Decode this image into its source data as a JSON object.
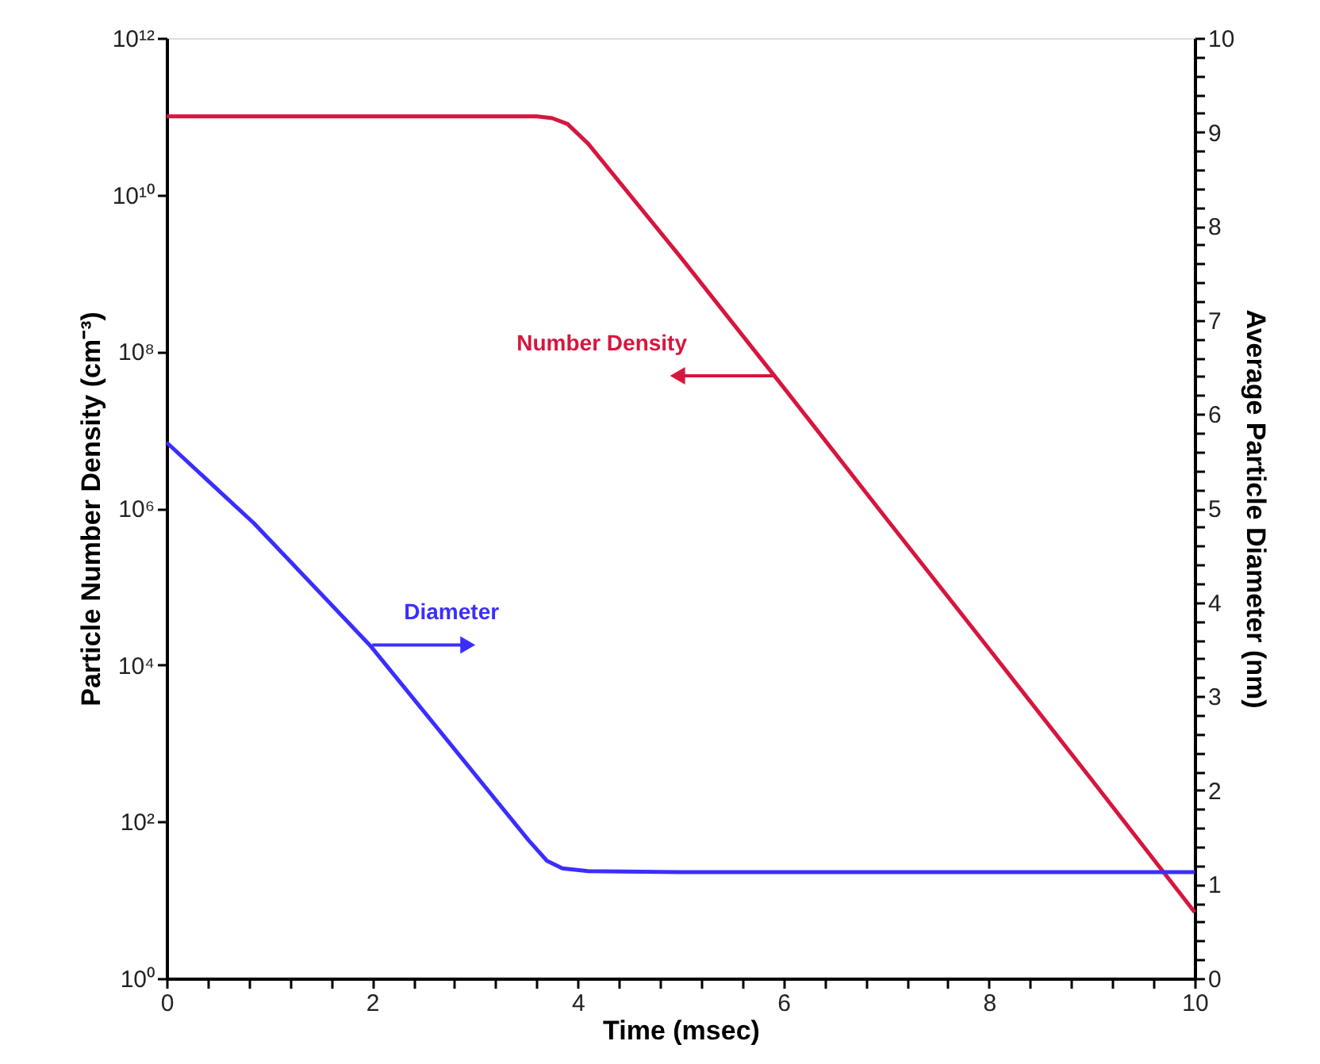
{
  "chart_data": {
    "type": "line",
    "xlabel": "Time (msec)",
    "ylabel": "Particle Number Density (cm⁻³)",
    "y2label": "Average Particle Diameter (nm)",
    "log": "y",
    "grid": false,
    "marker": "none",
    "line_style": "solid",
    "xlim": [
      0,
      10
    ],
    "xticks": [
      0,
      {
        "value": 0.4,
        "label": null
      },
      {
        "value": 0.8,
        "label": null
      },
      {
        "value": 1.2,
        "label": null
      },
      {
        "value": 1.6,
        "label": null
      },
      2,
      {
        "value": 2.4,
        "label": null
      },
      {
        "value": 2.8,
        "label": null
      },
      {
        "value": 3.2,
        "label": null
      },
      {
        "value": 3.6,
        "label": null
      },
      4,
      {
        "value": 4.4,
        "label": null
      },
      {
        "value": 4.8,
        "label": null
      },
      {
        "value": 5.2,
        "label": null
      },
      {
        "value": 5.6,
        "label": null
      },
      6,
      {
        "value": 6.4,
        "label": null
      },
      {
        "value": 6.8,
        "label": null
      },
      {
        "value": 7.2,
        "label": null
      },
      {
        "value": 7.6,
        "label": null
      },
      8,
      {
        "value": 8.4,
        "label": null
      },
      {
        "value": 8.8,
        "label": null
      },
      {
        "value": 9.2,
        "label": null
      },
      {
        "value": 9.6,
        "label": null
      },
      10
    ],
    "ylim": [
      1,
      1000000000000
    ],
    "yticks": [
      {
        "value": 1,
        "label": "10⁰"
      },
      {
        "value": 100,
        "label": "10²"
      },
      {
        "value": 10000,
        "label": "10⁴"
      },
      {
        "value": 1000000,
        "label": "10⁶"
      },
      {
        "value": 100000000,
        "label": "10⁸"
      },
      {
        "value": 10000000000,
        "label": "10¹⁰"
      },
      {
        "value": 1000000000000,
        "label": "10¹²"
      }
    ],
    "y2lim": [
      0,
      10
    ],
    "y2ticks": [
      0,
      {
        "value": 0.2,
        "label": null
      },
      {
        "value": 0.4,
        "label": null
      },
      {
        "value": 0.6,
        "label": null
      },
      {
        "value": 0.8,
        "label": null
      },
      1,
      {
        "value": 1.2,
        "label": null
      },
      {
        "value": 1.4,
        "label": null
      },
      {
        "value": 1.6,
        "label": null
      },
      {
        "value": 1.8,
        "label": null
      },
      2,
      {
        "value": 2.2,
        "label": null
      },
      {
        "value": 2.4,
        "label": null
      },
      {
        "value": 2.6,
        "label": null
      },
      {
        "value": 2.8,
        "label": null
      },
      3,
      {
        "value": 3.2,
        "label": null
      },
      {
        "value": 3.4,
        "label": null
      },
      {
        "value": 3.6,
        "label": null
      },
      {
        "value": 3.8,
        "label": null
      },
      4,
      {
        "value": 4.2,
        "label": null
      },
      {
        "value": 4.4,
        "label": null
      },
      {
        "value": 4.6,
        "label": null
      },
      {
        "value": 4.8,
        "label": null
      },
      5,
      {
        "value": 5.2,
        "label": null
      },
      {
        "value": 5.4,
        "label": null
      },
      {
        "value": 5.6,
        "label": null
      },
      {
        "value": 5.8,
        "label": null
      },
      6,
      {
        "value": 6.2,
        "label": null
      },
      {
        "value": 6.4,
        "label": null
      },
      {
        "value": 6.6,
        "label": null
      },
      {
        "value": 6.8,
        "label": null
      },
      7,
      {
        "value": 7.2,
        "label": null
      },
      {
        "value": 7.4,
        "label": null
      },
      {
        "value": 7.6,
        "label": null
      },
      {
        "value": 7.8,
        "label": null
      },
      8,
      {
        "value": 8.2,
        "label": null
      },
      {
        "value": 8.4,
        "label": null
      },
      {
        "value": 8.6,
        "label": null
      },
      {
        "value": 8.8,
        "label": null
      },
      9,
      {
        "value": 9.2,
        "label": null
      },
      {
        "value": 9.4,
        "label": null
      },
      {
        "value": 9.6,
        "label": null
      },
      {
        "value": 9.8,
        "label": null
      },
      10
    ],
    "series": [
      {
        "color": "#d6163e",
        "x": [
          0,
          3.6,
          3.75,
          3.9,
          4.1,
          5,
          6,
          7,
          8,
          9,
          10
        ],
        "values": [
          100000000000,
          100000000000,
          95000000000,
          80000000000,
          45000000000,
          1600000000,
          35000000,
          740000,
          16000,
          340,
          7
        ]
      },
      {
        "color": "#3a2eff",
        "axis": "y2",
        "x": [
          0,
          0.85,
          1.98,
          3.52,
          3.7,
          3.85,
          4.1,
          5,
          10
        ],
        "values": [
          5.7,
          4.84,
          3.54,
          1.47,
          1.25,
          1.17,
          1.14,
          1.13,
          1.13
        ]
      }
    ],
    "annotations": [
      {
        "text": "Number Density",
        "x": 5.9,
        "y": 49000000
      },
      {
        "text": "Diameter",
        "x": 2,
        "y": 18000
      }
    ]
  }
}
